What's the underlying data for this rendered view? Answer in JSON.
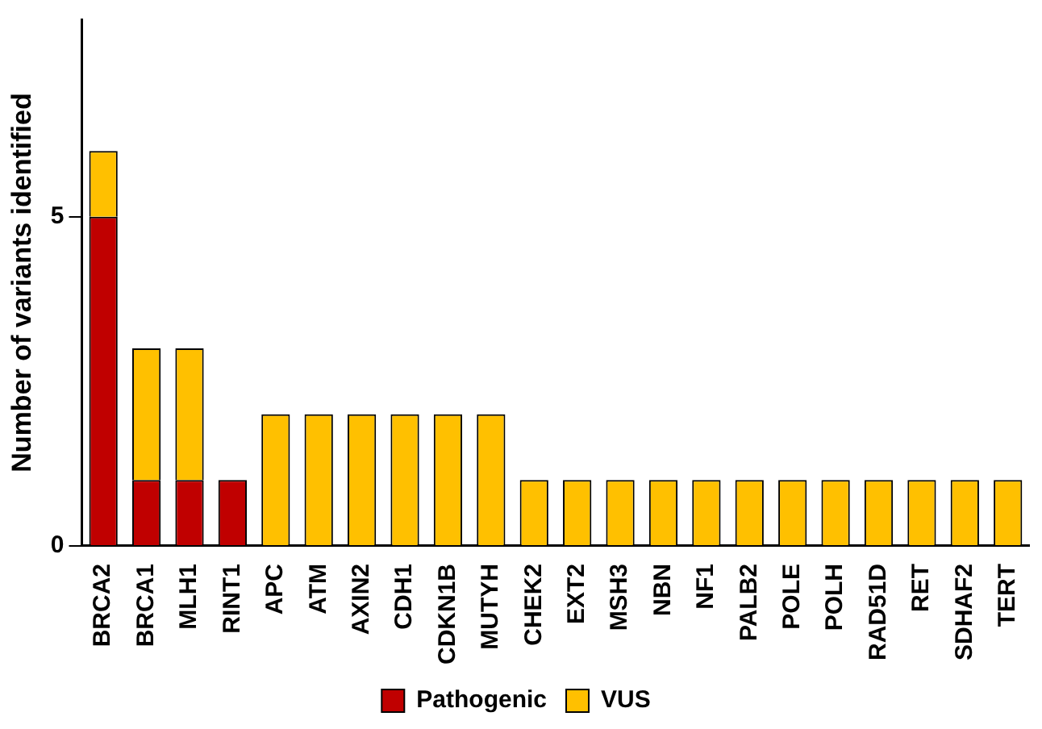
{
  "chart_data": {
    "type": "bar",
    "stacked": true,
    "ylabel": "Number of variants identified",
    "categories": [
      "BRCA2",
      "BRCA1",
      "MLH1",
      "RINT1",
      "APC",
      "ATM",
      "AXIN2",
      "CDH1",
      "CDKN1B",
      "MUTYH",
      "CHEK2",
      "EXT2",
      "MSH3",
      "NBN",
      "NF1",
      "PALB2",
      "POLE",
      "POLH",
      "RAD51D",
      "RET",
      "SDHAF2",
      "TERT"
    ],
    "series": [
      {
        "name": "Pathogenic",
        "color": "#c00000",
        "values": [
          5,
          1,
          1,
          1,
          0,
          0,
          0,
          0,
          0,
          0,
          0,
          0,
          0,
          0,
          0,
          0,
          0,
          0,
          0,
          0,
          0,
          0
        ]
      },
      {
        "name": "VUS",
        "color": "#ffc000",
        "values": [
          1,
          2,
          2,
          0,
          2,
          2,
          2,
          2,
          2,
          2,
          1,
          1,
          1,
          1,
          1,
          1,
          1,
          1,
          1,
          1,
          1,
          1
        ]
      }
    ],
    "ylim": [
      0,
      8
    ],
    "yticks": [
      0,
      5
    ],
    "grid": false,
    "legend": "bottom"
  }
}
